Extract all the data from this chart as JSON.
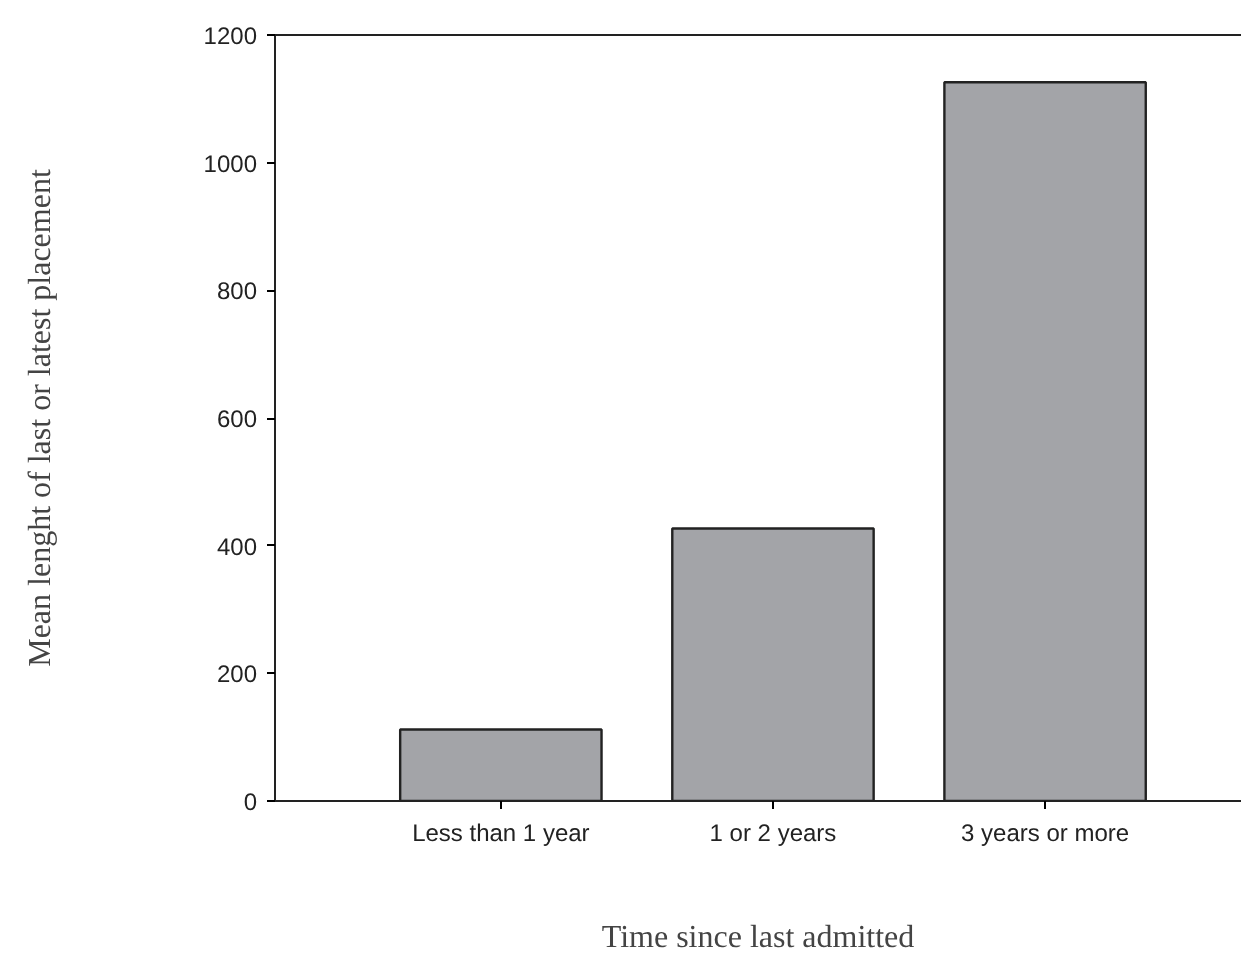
{
  "chart_data": {
    "type": "bar",
    "xlabel": "Time since last admitted",
    "ylabel": "Mean lenght of last or latest placement",
    "categories": [
      "Less than 1 year",
      "1 or 2 years",
      "3 years or more"
    ],
    "values": [
      112,
      427,
      1126
    ],
    "color": "#a3a4a8",
    "ylim": [
      0,
      1200
    ],
    "yticks": [
      0,
      200,
      400,
      600,
      800,
      1000,
      1200
    ],
    "grid": false
  }
}
